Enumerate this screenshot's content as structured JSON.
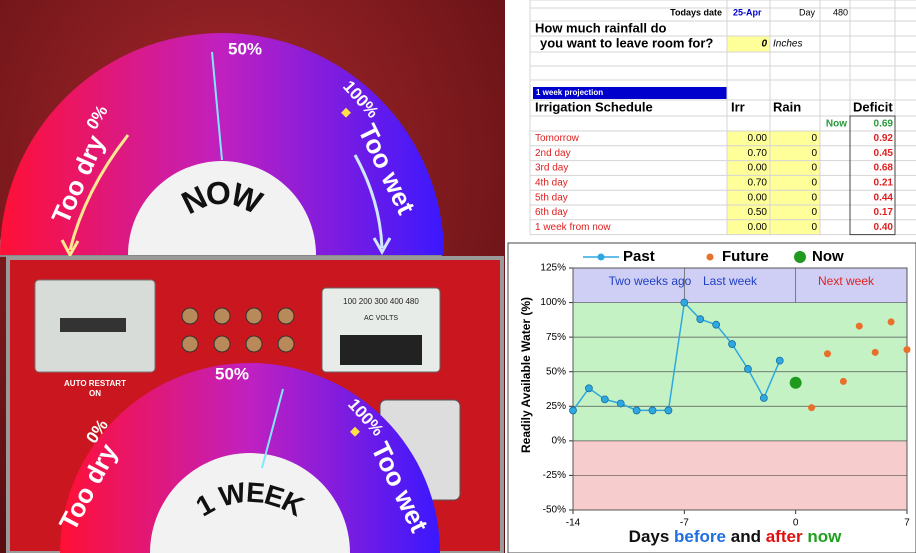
{
  "gauges": [
    {
      "center": "NOW",
      "mid": "50%",
      "min": "0%",
      "max": "100%",
      "left": "Too dry",
      "right": "Too wet"
    },
    {
      "center": "1 WEEK",
      "mid": "50%",
      "min": "0%",
      "max": "100%",
      "left": "Too dry",
      "right": "Too wet"
    }
  ],
  "panel": {
    "restart": "AUTO RESTART",
    "on": "ON",
    "meter": "AC VOLTS",
    "scale": "100  200  300  400  480"
  },
  "sheet": {
    "date_label": "Todays date",
    "date": "25-Apr",
    "day_label": "Day",
    "day": "480",
    "question": [
      "How much rainfall do",
      "you want to leave room for?"
    ],
    "room": "0",
    "unit": "Inches",
    "projection": "1 week projection",
    "headers": [
      "Irrigation Schedule",
      "Irr",
      "Rain",
      "Deficit"
    ],
    "now_label": "Now",
    "now_deficit": "0.69",
    "rows": [
      [
        "Tomorrow",
        "0.00",
        "0",
        "0.92"
      ],
      [
        "2nd day",
        "0.70",
        "0",
        "0.45"
      ],
      [
        "3rd day",
        "0.00",
        "0",
        "0.68"
      ],
      [
        "4th day",
        "0.70",
        "0",
        "0.21"
      ],
      [
        "5th day",
        "0.00",
        "0",
        "0.44"
      ],
      [
        "6th day",
        "0.50",
        "0",
        "0.17"
      ],
      [
        "1 week from now",
        "0.00",
        "0",
        "0.40"
      ]
    ]
  },
  "chart_data": {
    "type": "scatter",
    "ylabel": "Readily Available Water (%)",
    "xlabel_parts": [
      {
        "text": "Days",
        "color": "#111111"
      },
      {
        "text": "before",
        "color": "#1f6fe0"
      },
      {
        "text": "and",
        "color": "#111111"
      },
      {
        "text": "after",
        "color": "#e01010"
      },
      {
        "text": "now",
        "color": "#20a020"
      }
    ],
    "regions": [
      {
        "text": "Two weeks ago",
        "color": "#2040c0"
      },
      {
        "text": "Last week",
        "color": "#2040c0"
      },
      {
        "text": "Next week",
        "color": "#e02020"
      }
    ],
    "bands": [
      {
        "from": 100,
        "to": 125,
        "color": "#cfcff5"
      },
      {
        "from": 0,
        "to": 100,
        "color": "#c4f2c4"
      },
      {
        "from": -50,
        "to": 0,
        "color": "#f7cccc"
      }
    ],
    "xlim": [
      -14,
      7
    ],
    "xticks": [
      -14,
      -7,
      0,
      7
    ],
    "ylim": [
      -50,
      125
    ],
    "yticks": [
      {
        "value": -50,
        "label": "-50%"
      },
      {
        "value": -25,
        "label": "-25%"
      },
      {
        "value": 0,
        "label": "0%"
      },
      {
        "value": 25,
        "label": "25%"
      },
      {
        "value": 50,
        "label": "50%"
      },
      {
        "value": 75,
        "label": "75%"
      },
      {
        "value": 100,
        "label": "100%"
      },
      {
        "value": 125,
        "label": "125%"
      }
    ],
    "grid": true,
    "series": [
      {
        "name": "Past",
        "color": "#2fa8e0",
        "line": true,
        "x": [
          -14,
          -13,
          -12,
          -11,
          -10,
          -9,
          -8,
          -7,
          -6,
          -5,
          -4,
          -3,
          -2,
          -1
        ],
        "values": [
          22,
          38,
          30,
          27,
          22,
          22,
          22,
          100,
          88,
          84,
          70,
          52,
          31,
          58
        ]
      },
      {
        "name": "Future",
        "color": "#e8702a",
        "line": false,
        "x": [
          1,
          2,
          3,
          4,
          5,
          6,
          7
        ],
        "values": [
          24,
          63,
          43,
          83,
          64,
          86,
          66
        ]
      },
      {
        "name": "Now",
        "color": "#1f9a1f",
        "line": false,
        "x": [
          0
        ],
        "values": [
          42
        ]
      }
    ]
  }
}
